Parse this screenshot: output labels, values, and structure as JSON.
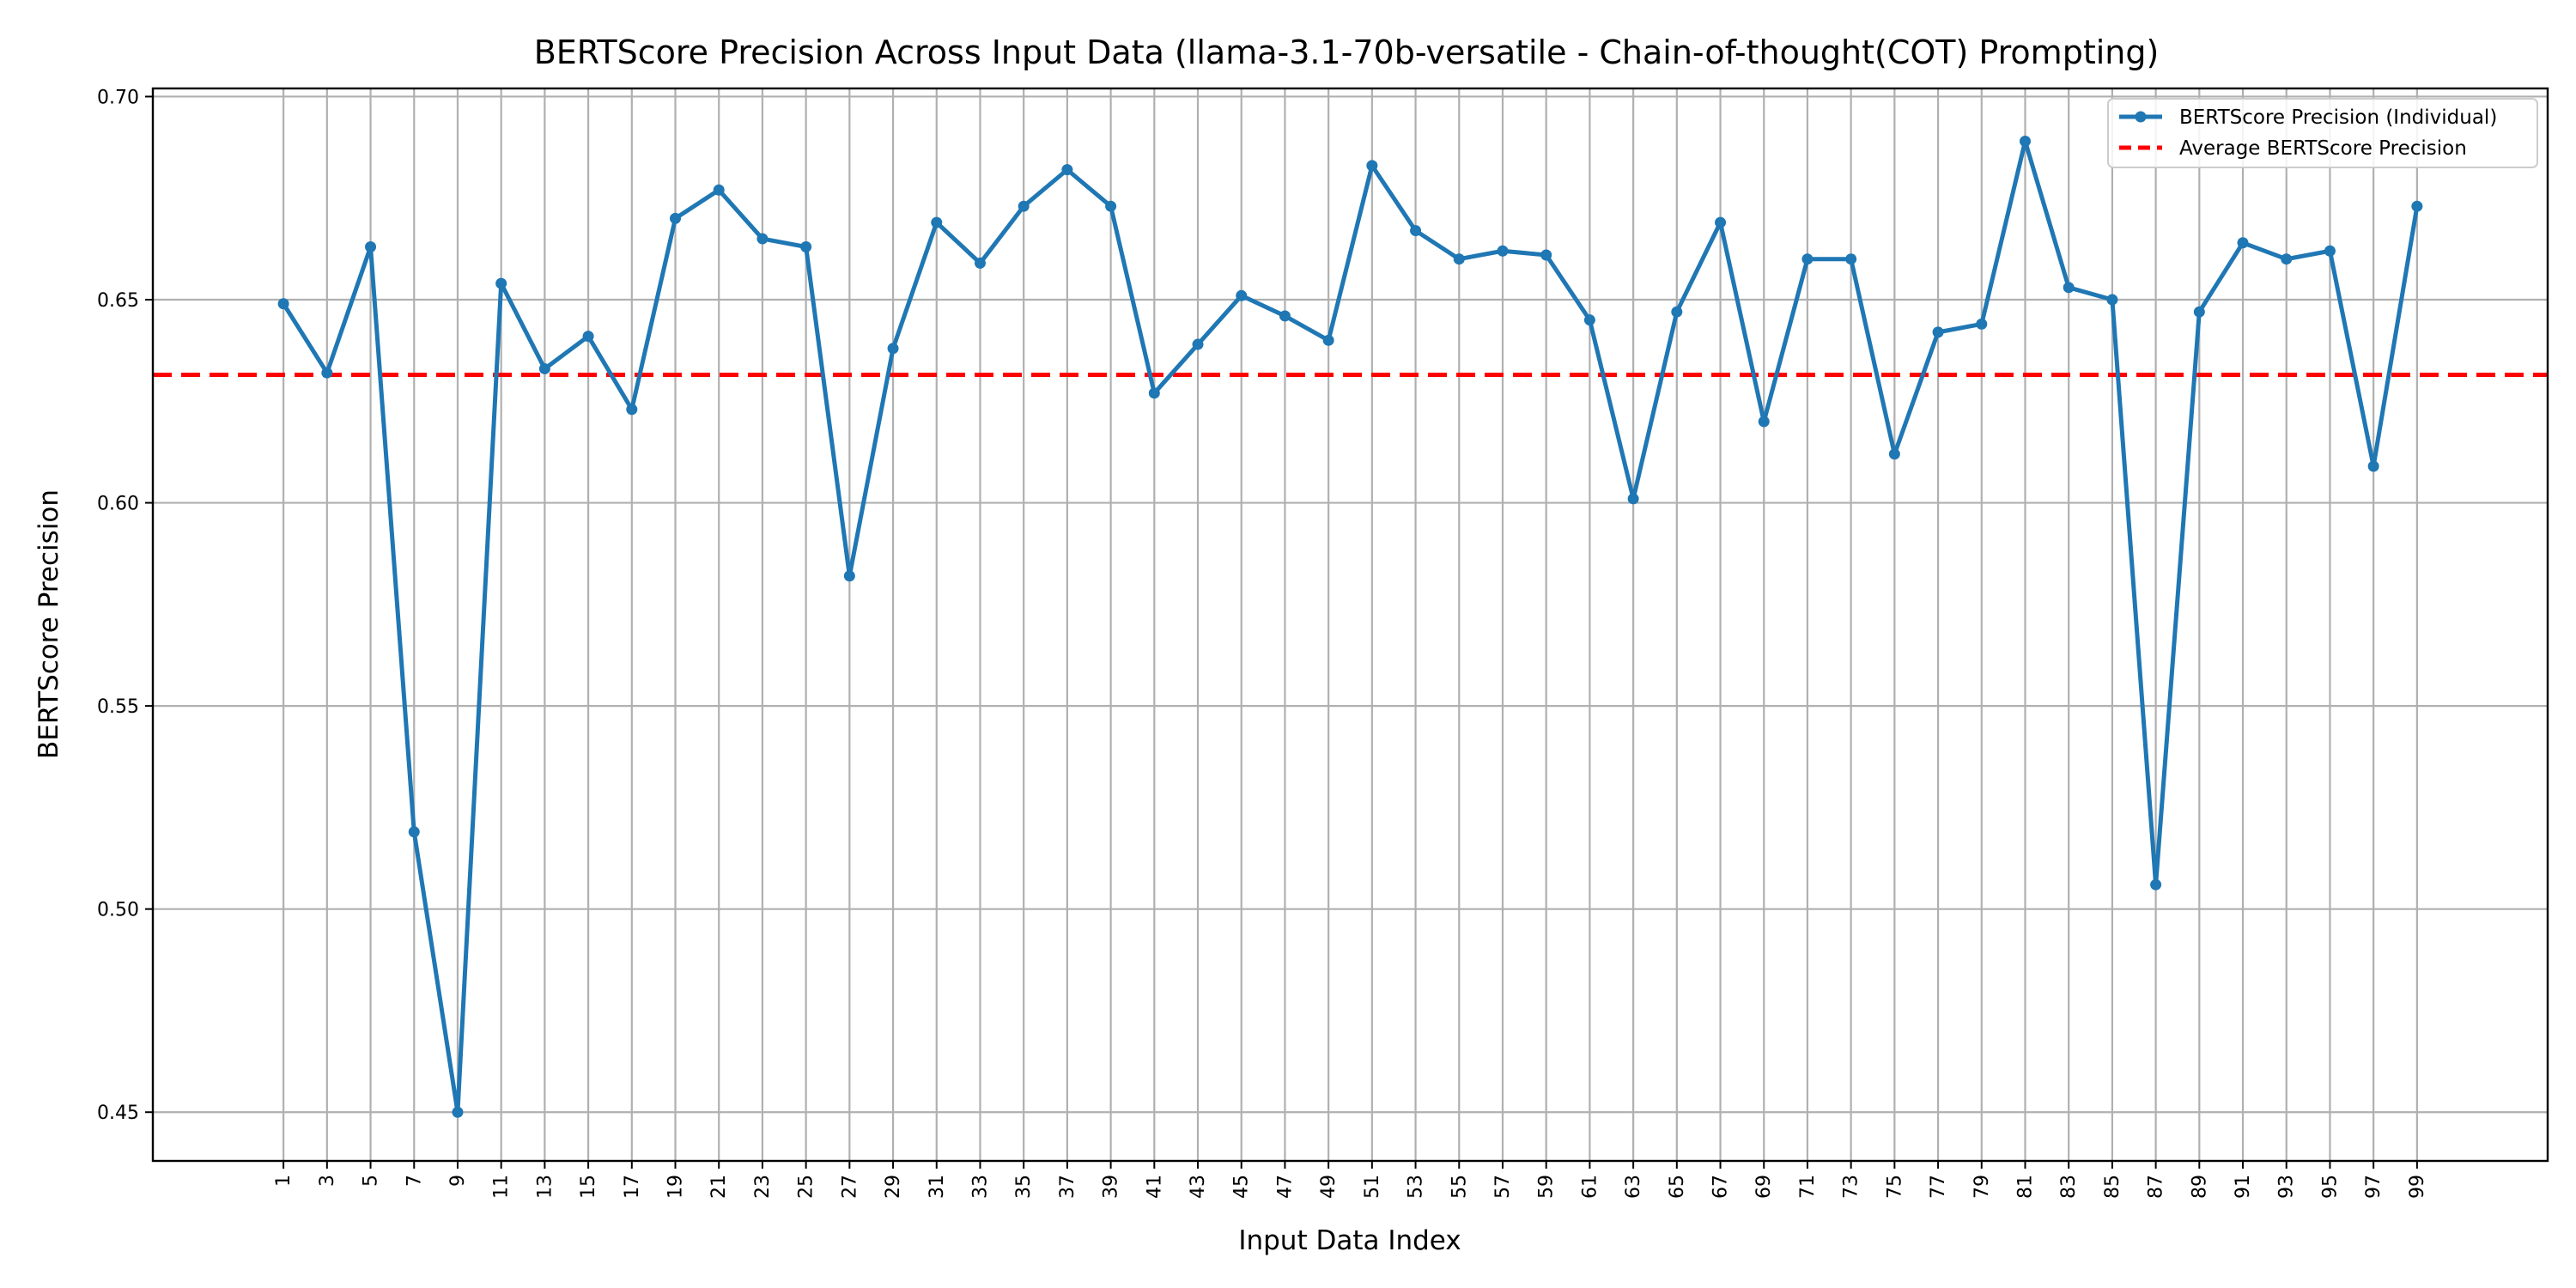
{
  "chart_data": {
    "type": "line",
    "title": "BERTScore Precision Across Input Data (llama-3.1-70b-versatile - Chain-of-thought(COT) Prompting)",
    "xlabel": "Input Data Index",
    "ylabel": "BERTScore Precision",
    "xlim": [
      -5,
      105
    ],
    "ylim": [
      0.438,
      0.702
    ],
    "yticks": [
      0.45,
      0.5,
      0.55,
      0.6,
      0.65,
      0.7
    ],
    "ytick_labels": [
      "0.45",
      "0.50",
      "0.55",
      "0.60",
      "0.65",
      "0.70"
    ],
    "xticks": [
      1,
      3,
      5,
      7,
      9,
      11,
      13,
      15,
      17,
      19,
      21,
      23,
      25,
      27,
      29,
      31,
      33,
      35,
      37,
      39,
      41,
      43,
      45,
      47,
      49,
      51,
      53,
      55,
      57,
      59,
      61,
      63,
      65,
      67,
      69,
      71,
      73,
      75,
      77,
      79,
      81,
      83,
      85,
      87,
      89,
      91,
      93,
      95,
      97,
      99
    ],
    "xtick_labels": [
      "1",
      "3",
      "5",
      "7",
      "9",
      "11",
      "13",
      "15",
      "17",
      "19",
      "21",
      "23",
      "25",
      "27",
      "29",
      "31",
      "33",
      "35",
      "37",
      "39",
      "41",
      "43",
      "45",
      "47",
      "49",
      "51",
      "53",
      "55",
      "57",
      "59",
      "61",
      "63",
      "65",
      "67",
      "69",
      "71",
      "73",
      "75",
      "77",
      "79",
      "81",
      "83",
      "85",
      "87",
      "89",
      "91",
      "93",
      "95",
      "97",
      "99"
    ],
    "grid": true,
    "legend_position": "top-right",
    "series": [
      {
        "name": "BERTScore Precision (Individual)",
        "color": "#1f77b4",
        "style": "solid-line-with-markers",
        "x": [
          1,
          3,
          5,
          7,
          9,
          11,
          13,
          15,
          17,
          19,
          21,
          23,
          25,
          27,
          29,
          31,
          33,
          35,
          37,
          39,
          41,
          43,
          45,
          47,
          49,
          51,
          53,
          55,
          57,
          59,
          61,
          63,
          65,
          67,
          69,
          71,
          73,
          75,
          77,
          79,
          81,
          83,
          85,
          87,
          89,
          91,
          93,
          95,
          97,
          99
        ],
        "values": [
          0.649,
          0.632,
          0.663,
          0.519,
          0.45,
          0.654,
          0.633,
          0.641,
          0.623,
          0.67,
          0.677,
          0.665,
          0.663,
          0.582,
          0.638,
          0.669,
          0.659,
          0.673,
          0.682,
          0.673,
          0.627,
          0.639,
          0.651,
          0.646,
          0.64,
          0.683,
          0.667,
          0.66,
          0.662,
          0.661,
          0.645,
          0.601,
          0.647,
          0.669,
          0.62,
          0.66,
          0.66,
          0.612,
          0.642,
          0.644,
          0.689,
          0.653,
          0.65,
          0.506,
          0.647,
          0.664,
          0.66,
          0.662,
          0.609,
          0.673
        ]
      },
      {
        "name": "Average BERTScore Precision",
        "color": "#ff0000",
        "style": "dashed-horizontal",
        "value": 0.6315
      }
    ]
  }
}
